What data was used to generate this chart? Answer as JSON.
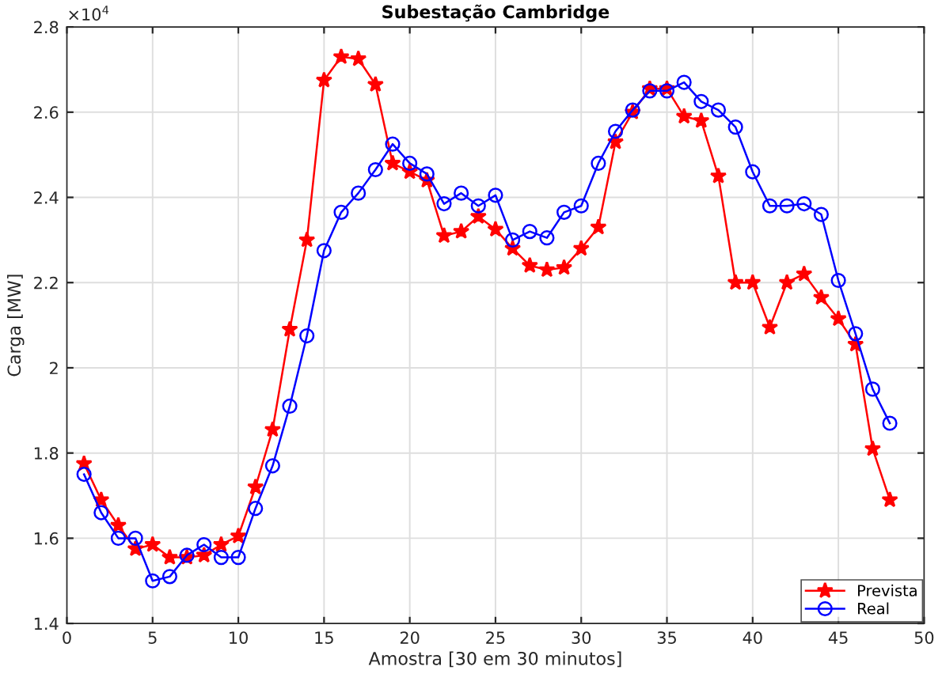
{
  "chart_data": {
    "type": "line",
    "title": "Subestação Cambridge",
    "xlabel": "Amostra [30 em 30 minutos]",
    "ylabel": "Carga [MW]",
    "annotations": [
      "×10$^{4}$"
    ],
    "x": [
      1,
      2,
      3,
      4,
      5,
      6,
      7,
      8,
      9,
      10,
      11,
      12,
      13,
      14,
      15,
      16,
      17,
      18,
      19,
      20,
      21,
      22,
      23,
      24,
      25,
      26,
      27,
      28,
      29,
      30,
      31,
      32,
      33,
      34,
      35,
      36,
      37,
      38,
      39,
      40,
      41,
      42,
      43,
      44,
      45,
      46,
      47,
      48
    ],
    "series": [
      {
        "name": "Prevista",
        "color": "#ff0000",
        "marker": "star",
        "values": [
          1.775,
          1.69,
          1.63,
          1.575,
          1.585,
          1.555,
          1.555,
          1.56,
          1.585,
          1.605,
          1.72,
          1.855,
          2.09,
          2.3,
          2.675,
          2.73,
          2.725,
          2.665,
          2.48,
          2.46,
          2.44,
          2.31,
          2.32,
          2.355,
          2.325,
          2.28,
          2.24,
          2.23,
          2.235,
          2.28,
          2.33,
          2.53,
          2.6,
          2.655,
          2.655,
          2.59,
          2.58,
          2.45,
          2.2,
          2.2,
          2.095,
          2.2,
          2.22,
          2.165,
          2.115,
          2.055,
          1.81,
          1.69
        ]
      },
      {
        "name": "Real",
        "color": "#0000ff",
        "marker": "circle",
        "values": [
          1.75,
          1.66,
          1.6,
          1.6,
          1.5,
          1.51,
          1.56,
          1.585,
          1.555,
          1.555,
          1.67,
          1.77,
          1.91,
          2.075,
          2.275,
          2.365,
          2.41,
          2.465,
          2.525,
          2.48,
          2.455,
          2.385,
          2.41,
          2.38,
          2.405,
          2.3,
          2.32,
          2.305,
          2.365,
          2.38,
          2.48,
          2.555,
          2.605,
          2.65,
          2.65,
          2.67,
          2.625,
          2.605,
          2.565,
          2.46,
          2.38,
          2.38,
          2.385,
          2.36,
          2.205,
          2.08,
          1.95,
          1.87
        ]
      }
    ],
    "xlim": [
      0,
      50
    ],
    "xticks": [
      0,
      5,
      10,
      15,
      20,
      25,
      30,
      35,
      40,
      45,
      50
    ],
    "ylim": [
      1.4,
      2.8
    ],
    "yticks": [
      1.4,
      1.6,
      1.8,
      2,
      2.2,
      2.4,
      2.6,
      2.8
    ],
    "grid": true,
    "legend": "bottom right",
    "line_style": "solid"
  }
}
